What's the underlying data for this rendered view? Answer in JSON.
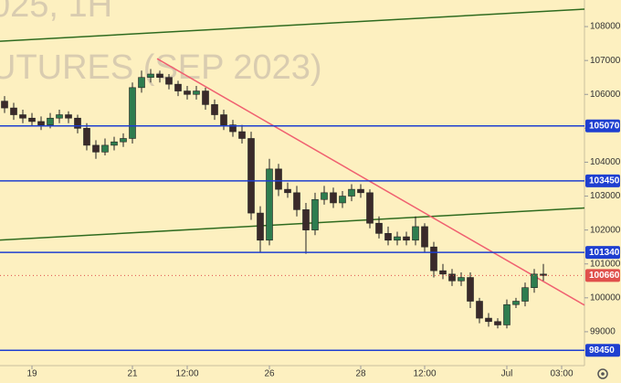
{
  "chart_data": {
    "type": "candlestick",
    "watermark": [
      "025, 1H",
      "UTURES (SEP 2023)"
    ],
    "open": [
      105800,
      105600,
      105400,
      105300,
      105200,
      105100,
      105300,
      105400,
      105300,
      105000,
      104500,
      104300,
      104500,
      104600,
      104700,
      106200,
      106500,
      106600,
      106500,
      106300,
      106100,
      106000,
      106100,
      105700,
      105400,
      105100,
      104900,
      104700,
      102500,
      101700,
      103800,
      103200,
      103100,
      102600,
      102000,
      102900,
      103100,
      102800,
      103000,
      103200,
      103100,
      102200,
      101900,
      101700,
      101800,
      101700,
      102100,
      101500,
      100800,
      100700,
      100500,
      100600,
      99900,
      99400,
      99300,
      99200,
      99800,
      99900,
      100300,
      100700
    ],
    "high": [
      105950,
      105750,
      105550,
      105450,
      105350,
      105450,
      105550,
      105500,
      105400,
      105150,
      104650,
      104700,
      104750,
      104850,
      106350,
      106700,
      106750,
      106700,
      106600,
      106400,
      106250,
      106250,
      106200,
      105850,
      105550,
      105250,
      105100,
      104900,
      102700,
      104100,
      103950,
      103400,
      103300,
      102800,
      103100,
      103300,
      103250,
      103150,
      103350,
      103350,
      103200,
      102400,
      102100,
      101950,
      101950,
      102400,
      102200,
      101650,
      101000,
      100850,
      100750,
      100750,
      100000,
      99550,
      99400,
      99950,
      100000,
      100450,
      100850,
      101000
    ],
    "low": [
      105450,
      105250,
      105150,
      105050,
      104950,
      105000,
      105150,
      105150,
      104850,
      104350,
      104100,
      104200,
      104350,
      104450,
      104550,
      106050,
      106350,
      106350,
      106150,
      105950,
      105850,
      105850,
      105550,
      105250,
      104950,
      104750,
      104550,
      102300,
      101350,
      101550,
      103000,
      102950,
      102400,
      101300,
      101850,
      102750,
      102650,
      102650,
      102850,
      102950,
      102050,
      101750,
      101550,
      101550,
      101550,
      101550,
      101350,
      100600,
      100550,
      100350,
      100350,
      99700,
      99250,
      99150,
      99100,
      99100,
      99700,
      99750,
      100150,
      100500
    ],
    "close": [
      105600,
      105400,
      105300,
      105200,
      105100,
      105300,
      105400,
      105300,
      105000,
      104500,
      104300,
      104500,
      104600,
      104700,
      106200,
      106500,
      106600,
      106500,
      106300,
      106100,
      106000,
      106100,
      105700,
      105400,
      105100,
      104900,
      104700,
      102500,
      101700,
      103800,
      103200,
      103100,
      102600,
      102000,
      102900,
      103100,
      102800,
      103000,
      103200,
      103100,
      102200,
      101900,
      101700,
      101800,
      101700,
      102100,
      101500,
      100800,
      100700,
      100500,
      100600,
      99900,
      99400,
      99300,
      99200,
      99800,
      99900,
      100300,
      100700,
      100660
    ],
    "up_color": "#2e7d4f",
    "down_color": "#3a2a2a",
    "xlim": [
      -0.5,
      63.5
    ],
    "xticks": [
      {
        "value": 3,
        "label": "19"
      },
      {
        "value": 14,
        "label": "21"
      },
      {
        "value": 20,
        "label": "12:00"
      },
      {
        "value": 29,
        "label": "26"
      },
      {
        "value": 39,
        "label": "28"
      },
      {
        "value": 46,
        "label": "12:00"
      },
      {
        "value": 55,
        "label": "Jul"
      },
      {
        "value": 61,
        "label": "03:00"
      }
    ],
    "ylim": [
      98000,
      108784
    ],
    "yticks": [
      99000,
      100000,
      101000,
      102000,
      103000,
      104000,
      105000,
      106000,
      107000,
      108000
    ],
    "levels": [
      {
        "value": 105070,
        "color": "#1e3fd0"
      },
      {
        "value": 103450,
        "color": "#1e3fd0"
      },
      {
        "value": 101340,
        "color": "#1e3fd0"
      },
      {
        "value": 98450,
        "color": "#1e3fd0"
      }
    ],
    "last_price": {
      "value": 100660,
      "color": "#e0504c"
    },
    "trendlines": [
      {
        "x": [
          -0.5,
          63.5
        ],
        "y": [
          107568,
          108514
        ],
        "color": "#2f6b1f"
      },
      {
        "x": [
          -0.5,
          63.5
        ],
        "y": [
          101703,
          102649
        ],
        "color": "#2f6b1f"
      },
      {
        "x": [
          16.7,
          63.5
        ],
        "y": [
          107054,
          99784
        ],
        "color": "#f06070"
      }
    ]
  }
}
